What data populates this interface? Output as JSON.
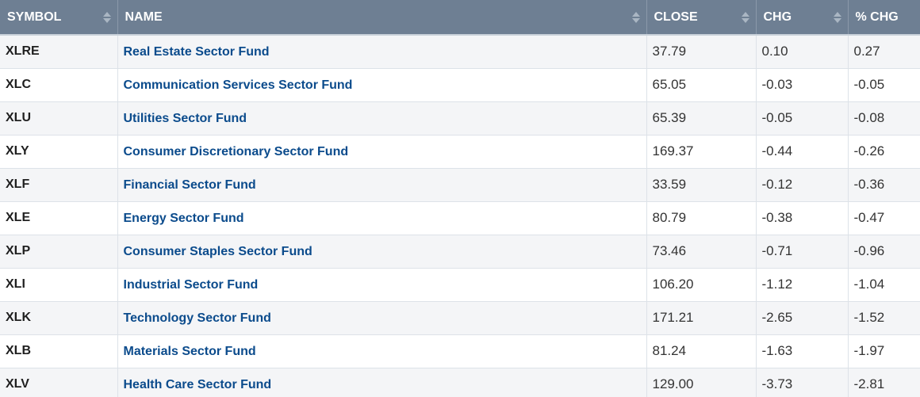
{
  "table": {
    "headers": {
      "symbol": "SYMBOL",
      "name": "NAME",
      "close": "CLOSE",
      "chg": "CHG",
      "pct_chg": "% CHG"
    },
    "rows": [
      {
        "symbol": "XLRE",
        "name": "Real Estate Sector Fund",
        "close": "37.79",
        "chg": "0.10",
        "pct_chg": "0.27"
      },
      {
        "symbol": "XLC",
        "name": "Communication Services Sector Fund",
        "close": "65.05",
        "chg": "-0.03",
        "pct_chg": "-0.05"
      },
      {
        "symbol": "XLU",
        "name": "Utilities Sector Fund",
        "close": "65.39",
        "chg": "-0.05",
        "pct_chg": "-0.08"
      },
      {
        "symbol": "XLY",
        "name": "Consumer Discretionary Sector Fund",
        "close": "169.37",
        "chg": "-0.44",
        "pct_chg": "-0.26"
      },
      {
        "symbol": "XLF",
        "name": "Financial Sector Fund",
        "close": "33.59",
        "chg": "-0.12",
        "pct_chg": "-0.36"
      },
      {
        "symbol": "XLE",
        "name": "Energy Sector Fund",
        "close": "80.79",
        "chg": "-0.38",
        "pct_chg": "-0.47"
      },
      {
        "symbol": "XLP",
        "name": "Consumer Staples Sector Fund",
        "close": "73.46",
        "chg": "-0.71",
        "pct_chg": "-0.96"
      },
      {
        "symbol": "XLI",
        "name": "Industrial Sector Fund",
        "close": "106.20",
        "chg": "-1.12",
        "pct_chg": "-1.04"
      },
      {
        "symbol": "XLK",
        "name": "Technology Sector Fund",
        "close": "171.21",
        "chg": "-2.65",
        "pct_chg": "-1.52"
      },
      {
        "symbol": "XLB",
        "name": "Materials Sector Fund",
        "close": "81.24",
        "chg": "-1.63",
        "pct_chg": "-1.97"
      },
      {
        "symbol": "XLV",
        "name": "Health Care Sector Fund",
        "close": "129.00",
        "chg": "-3.73",
        "pct_chg": "-2.81"
      }
    ]
  },
  "icons": {
    "sort": "sort-icon"
  },
  "colors": {
    "header_bg": "#6e7f93",
    "header_text": "#ffffff",
    "link": "#0b4b8c",
    "row_alt": "#f4f5f7"
  }
}
